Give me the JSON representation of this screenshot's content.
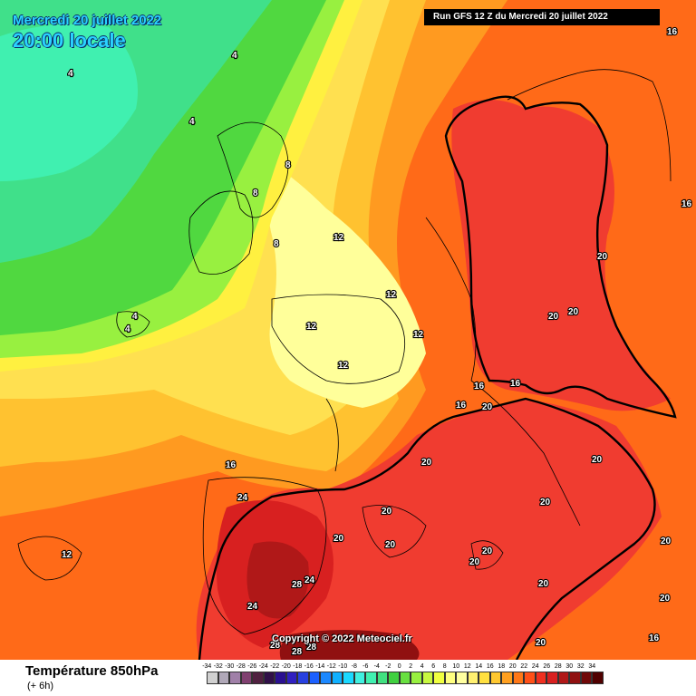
{
  "header": {
    "date": "Mercredi 20 juillet 2022",
    "time": "20:00 locale",
    "run": "Run GFS 12 Z du Mercredi 20 juillet 2022"
  },
  "copyright": "Copyright © 2022 Meteociel.fr",
  "footer": {
    "title": "Température 850hPa",
    "subtitle": "(+ 6h)"
  },
  "scale": {
    "labels": [
      "-34",
      "-32",
      "-30",
      "-28",
      "-26",
      "-24",
      "-22",
      "-20",
      "-18",
      "-16",
      "-14",
      "-12",
      "-10",
      "-8",
      "-6",
      "-4",
      "-2",
      "0",
      "2",
      "4",
      "6",
      "8",
      "10",
      "12",
      "14",
      "16",
      "18",
      "20",
      "22",
      "24",
      "26",
      "28",
      "30",
      "32",
      "34"
    ],
    "colors": [
      "#d0d0d0",
      "#b0a8b8",
      "#a080a8",
      "#804070",
      "#502040",
      "#301048",
      "#2a1090",
      "#3020c0",
      "#2840e0",
      "#1c60ff",
      "#1c88ff",
      "#10b0ff",
      "#1ad8ff",
      "#40f0e0",
      "#40f0b0",
      "#40e080",
      "#40d040",
      "#68e040",
      "#98f040",
      "#c8f840",
      "#f0ff40",
      "#ffff80",
      "#ffffa0",
      "#fff070",
      "#ffe040",
      "#ffc830",
      "#ffa020",
      "#ff7818",
      "#ff5018",
      "#f03020",
      "#d82020",
      "#b01818",
      "#901010",
      "#700808",
      "#500000"
    ]
  },
  "isolines": [
    {
      "label": "4"
    },
    {
      "label": "4"
    },
    {
      "label": "4"
    },
    {
      "label": "4"
    },
    {
      "label": "4"
    },
    {
      "label": "8"
    },
    {
      "label": "8"
    },
    {
      "label": "8"
    },
    {
      "label": "12"
    },
    {
      "label": "12"
    },
    {
      "label": "12"
    },
    {
      "label": "12"
    },
    {
      "label": "12"
    },
    {
      "label": "12"
    },
    {
      "label": "16"
    },
    {
      "label": "16"
    },
    {
      "label": "16"
    },
    {
      "label": "16"
    },
    {
      "label": "16"
    },
    {
      "label": "16"
    },
    {
      "label": "16"
    },
    {
      "label": "20"
    },
    {
      "label": "20"
    },
    {
      "label": "20"
    },
    {
      "label": "20"
    },
    {
      "label": "20"
    },
    {
      "label": "20"
    },
    {
      "label": "20"
    },
    {
      "label": "20"
    },
    {
      "label": "20"
    },
    {
      "label": "20"
    },
    {
      "label": "20"
    },
    {
      "label": "20"
    },
    {
      "label": "20"
    },
    {
      "label": "20"
    },
    {
      "label": "20"
    },
    {
      "label": "20"
    },
    {
      "label": "24"
    },
    {
      "label": "24"
    },
    {
      "label": "24"
    },
    {
      "label": "28"
    },
    {
      "label": "28"
    },
    {
      "label": "28"
    },
    {
      "label": "28"
    }
  ]
}
